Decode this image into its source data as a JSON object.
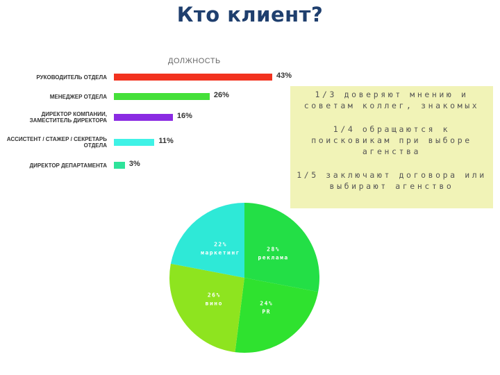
{
  "slide": {
    "title": "Кто клиент?"
  },
  "chart_data": [
    {
      "type": "bar",
      "orientation": "horizontal",
      "title": "ДОЛЖНОСТЬ",
      "categories": [
        "РУКОВОДИТЕЛЬ ОТДЕЛА",
        "МЕНЕДЖЕР ОТДЕЛА",
        "ДИРЕКТОР КОМПАНИИ, ЗАМЕСТИТЕЛЬ ДИРЕКТОРА",
        "АССИСТЕНТ / СТАЖЕР / СЕКРЕТАРЬ ОТДЕЛА",
        "ДИРЕКТОР ДЕПАРТАМЕНТА"
      ],
      "values": [
        43,
        26,
        16,
        11,
        3
      ],
      "value_labels": [
        "43%",
        "26%",
        "16%",
        "11%",
        "3%"
      ],
      "colors": [
        "#f2321f",
        "#45e03a",
        "#8a2be2",
        "#3ff2e6",
        "#2ee39a"
      ],
      "xlim": [
        0,
        43
      ]
    },
    {
      "type": "pie",
      "slices": [
        {
          "label": "28%",
          "name": "реклама",
          "value": 28,
          "color": "#23df46"
        },
        {
          "label": "24%",
          "name": "PR",
          "value": 24,
          "color": "#2fe22f"
        },
        {
          "label": "26%",
          "name": "вино",
          "value": 26,
          "color": "#8ee41f"
        },
        {
          "label": "22%",
          "name": "маркетинг",
          "value": 22,
          "color": "#2ee9d7"
        }
      ]
    }
  ],
  "info": {
    "lines": [
      "1/3 доверяют мнению и советам коллег, знакомых",
      "1/4 обращаются к поисковикам при выборе агенства",
      "1/5 заключают договора или выбирают агенство"
    ]
  }
}
